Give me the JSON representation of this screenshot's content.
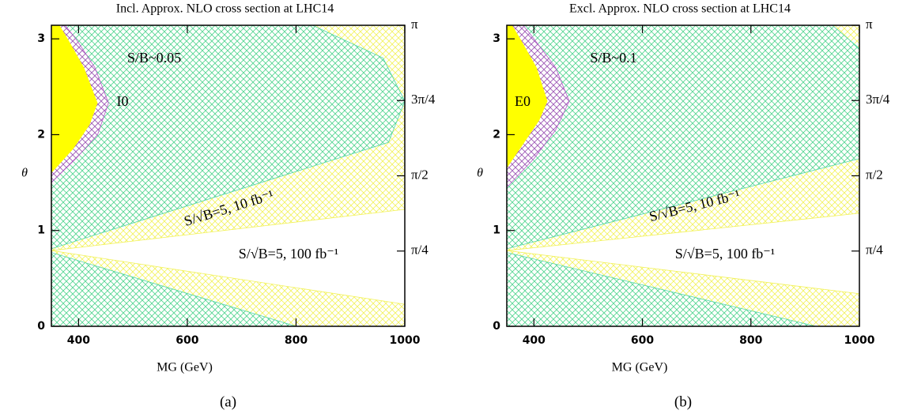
{
  "chart_data": [
    {
      "type": "region",
      "title": "Incl. Approx. NLO cross section at LHC14",
      "xlabel": "MG (GeV)",
      "ylabel": "θ",
      "caption": "(a)",
      "xlim": [
        350,
        1000
      ],
      "xticks": [
        400,
        600,
        800,
        1000
      ],
      "ylim": [
        0,
        3.1416
      ],
      "yticks": [
        0,
        1,
        2,
        3
      ],
      "y2lim": [
        0,
        3.1416
      ],
      "y2ticks": [
        {
          "value": 3.1416,
          "label": "π"
        },
        {
          "value": 2.3562,
          "label": "3π/4"
        },
        {
          "value": 1.5708,
          "label": "π/2"
        },
        {
          "value": 0.7854,
          "label": "π/4"
        }
      ],
      "series": [
        {
          "name": "S/√B=5, 100 fb⁻¹",
          "color": "#f2f25a",
          "hatch": true,
          "x": [
            350,
            350,
            1000,
            1000,
            350,
            1000,
            1000
          ],
          "y": [
            0,
            3.1416,
            3.1416,
            1.22,
            0.79,
            0.23,
            0
          ]
        },
        {
          "name": "S/√B=5, 10 fb⁻¹",
          "color": "#4fd6a8",
          "hatch": true,
          "x": [
            350,
            350,
            830,
            960,
            1000,
            970,
            350,
            350,
            800
          ],
          "y": [
            0,
            3.1416,
            3.1416,
            2.8,
            2.35,
            1.92,
            0.81,
            0.77,
            0
          ]
        },
        {
          "name": "S/B~0.05",
          "color": "#b455c8",
          "hatch": true,
          "x": [
            350,
            395,
            435,
            455,
            430,
            395,
            375,
            350
          ],
          "y": [
            1.5,
            1.75,
            2.0,
            2.33,
            2.7,
            3.0,
            3.1416,
            3.1416
          ]
        },
        {
          "name": "I0",
          "color": "#ffff00",
          "hatch": false,
          "x": [
            350,
            390,
            420,
            435,
            410,
            380,
            365,
            350
          ],
          "y": [
            1.6,
            1.85,
            2.1,
            2.33,
            2.7,
            3.0,
            3.1416,
            3.1416
          ]
        }
      ]
    },
    {
      "type": "region",
      "title": "Excl. Approx. NLO cross section at LHC14",
      "xlabel": "MG (GeV)",
      "ylabel": "θ",
      "caption": "(b)",
      "xlim": [
        350,
        1000
      ],
      "xticks": [
        400,
        600,
        800,
        1000
      ],
      "ylim": [
        0,
        3.1416
      ],
      "yticks": [
        0,
        1,
        2,
        3
      ],
      "y2lim": [
        0,
        3.1416
      ],
      "y2ticks": [
        {
          "value": 3.1416,
          "label": "π"
        },
        {
          "value": 2.3562,
          "label": "3π/4"
        },
        {
          "value": 1.5708,
          "label": "π/2"
        },
        {
          "value": 0.7854,
          "label": "π/4"
        }
      ],
      "series": [
        {
          "name": "S/√B=5, 100 fb⁻¹",
          "color": "#f2f25a",
          "hatch": true,
          "x": [
            350,
            350,
            1000,
            1000,
            350,
            1000,
            1000
          ],
          "y": [
            0,
            3.1416,
            3.1416,
            1.18,
            0.79,
            0.34,
            0
          ]
        },
        {
          "name": "S/√B=5, 10 fb⁻¹",
          "color": "#4fd6a8",
          "hatch": true,
          "x": [
            350,
            350,
            950,
            1000,
            1000,
            350,
            350,
            920
          ],
          "y": [
            0,
            3.1416,
            3.1416,
            2.9,
            1.75,
            0.81,
            0.77,
            0
          ]
        },
        {
          "name": "S/B~0.1",
          "color": "#b455c8",
          "hatch": true,
          "x": [
            350,
            400,
            440,
            465,
            440,
            400,
            380,
            350
          ],
          "y": [
            1.45,
            1.75,
            2.05,
            2.35,
            2.7,
            3.0,
            3.1416,
            3.1416
          ]
        },
        {
          "name": "E0",
          "color": "#ffff00",
          "hatch": false,
          "x": [
            350,
            380,
            410,
            425,
            405,
            375,
            360,
            350
          ],
          "y": [
            1.65,
            1.9,
            2.15,
            2.35,
            2.7,
            3.0,
            3.1416,
            3.1416
          ]
        }
      ]
    }
  ]
}
